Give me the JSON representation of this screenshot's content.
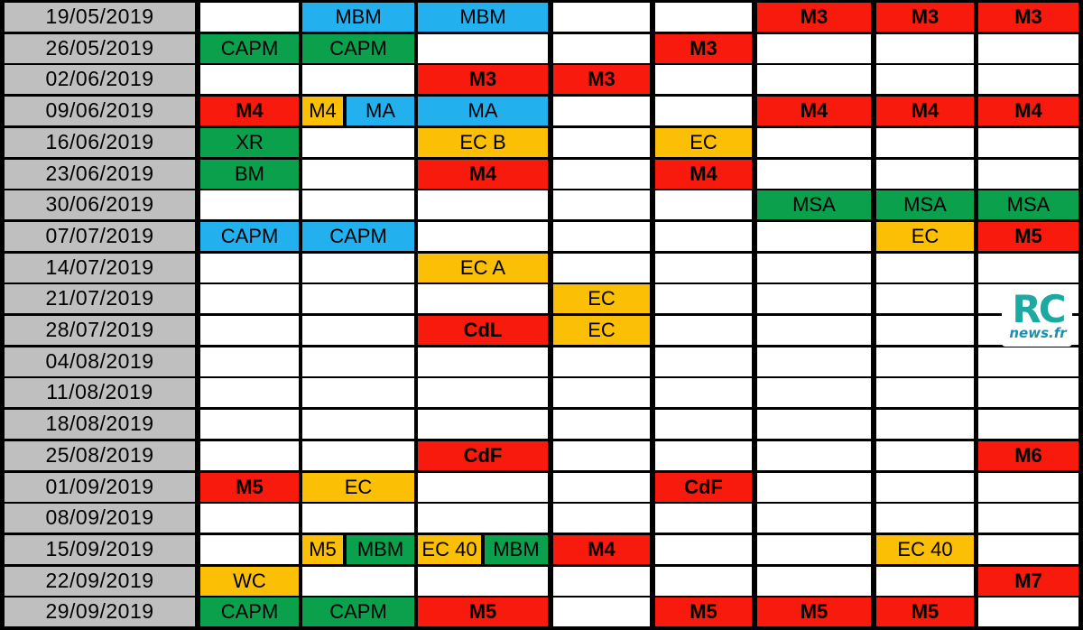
{
  "colors": {
    "red": "#f81a0c",
    "green": "#0aa04c",
    "blue": "#23b0ef",
    "yellow": "#fbbf05",
    "date_bg": "#bfbfbf",
    "empty": "#ffffff"
  },
  "logo": {
    "main": "RC",
    "sub": "news.fr"
  },
  "rows": [
    {
      "date": "19/05/2019",
      "cells": [
        {
          "span": 1
        },
        {
          "span": 1,
          "text": "MBM",
          "color": "blue"
        },
        {
          "span": 1,
          "text": "MBM",
          "color": "blue"
        },
        {
          "span": 1
        },
        {
          "span": 1
        },
        {
          "span": 1,
          "text": "M3",
          "color": "red"
        },
        {
          "span": 1,
          "text": "M3",
          "color": "red"
        },
        {
          "span": 1,
          "text": "M3",
          "color": "red"
        }
      ]
    },
    {
      "date": "26/05/2019",
      "cells": [
        {
          "span": 1,
          "text": "CAPM",
          "color": "green"
        },
        {
          "span": 1,
          "text": "CAPM",
          "color": "green"
        },
        {
          "span": 1
        },
        {
          "span": 1
        },
        {
          "span": 1,
          "text": "M3",
          "color": "red"
        },
        {
          "span": 1
        },
        {
          "span": 1
        },
        {
          "span": 1
        }
      ]
    },
    {
      "date": "02/06/2019",
      "cells": [
        {
          "span": 1
        },
        {
          "span": 1
        },
        {
          "span": 1,
          "text": "M3",
          "color": "red"
        },
        {
          "span": 1,
          "text": "M3",
          "color": "red"
        },
        {
          "span": 1
        },
        {
          "span": 1
        },
        {
          "span": 1
        },
        {
          "span": 1
        }
      ]
    },
    {
      "date": "09/06/2019",
      "cells": [
        {
          "span": 1,
          "text": "M4",
          "color": "red"
        },
        {
          "split": [
            {
              "text": "M4",
              "color": "yellow",
              "w": 0.38
            },
            {
              "text": "MA",
              "color": "blue",
              "w": 0.62
            }
          ]
        },
        {
          "span": 1,
          "text": "MA",
          "color": "blue"
        },
        {
          "span": 1
        },
        {
          "span": 1
        },
        {
          "span": 1,
          "text": "M4",
          "color": "red"
        },
        {
          "span": 1,
          "text": "M4",
          "color": "red"
        },
        {
          "span": 1,
          "text": "M4",
          "color": "red"
        }
      ]
    },
    {
      "date": "16/06/2019",
      "cells": [
        {
          "span": 1,
          "text": "XR",
          "color": "green"
        },
        {
          "span": 1
        },
        {
          "span": 1,
          "text": "EC B",
          "color": "yellow"
        },
        {
          "span": 1
        },
        {
          "span": 1,
          "text": "EC",
          "color": "yellow"
        },
        {
          "span": 1
        },
        {
          "span": 1
        },
        {
          "span": 1
        }
      ]
    },
    {
      "date": "23/06/2019",
      "cells": [
        {
          "span": 1,
          "text": "BM",
          "color": "green"
        },
        {
          "span": 1
        },
        {
          "span": 1,
          "text": "M4",
          "color": "red"
        },
        {
          "span": 1
        },
        {
          "span": 1,
          "text": "M4",
          "color": "red"
        },
        {
          "span": 1
        },
        {
          "span": 1
        },
        {
          "span": 1
        }
      ]
    },
    {
      "date": "30/06/2019",
      "cells": [
        {
          "span": 1
        },
        {
          "span": 1
        },
        {
          "span": 1
        },
        {
          "span": 1
        },
        {
          "span": 1
        },
        {
          "span": 1,
          "text": "MSA",
          "color": "green"
        },
        {
          "span": 1,
          "text": "MSA",
          "color": "green"
        },
        {
          "span": 1,
          "text": "MSA",
          "color": "green"
        }
      ]
    },
    {
      "date": "07/07/2019",
      "cells": [
        {
          "span": 1,
          "text": "CAPM",
          "color": "blue"
        },
        {
          "span": 1,
          "text": "CAPM",
          "color": "blue"
        },
        {
          "span": 1
        },
        {
          "span": 1
        },
        {
          "span": 1
        },
        {
          "span": 1
        },
        {
          "span": 1,
          "text": "EC",
          "color": "yellow"
        },
        {
          "span": 1,
          "text": "M5",
          "color": "red"
        }
      ]
    },
    {
      "date": "14/07/2019",
      "cells": [
        {
          "span": 1
        },
        {
          "span": 1
        },
        {
          "span": 1,
          "text": "EC A",
          "color": "yellow"
        },
        {
          "span": 1
        },
        {
          "span": 1
        },
        {
          "span": 1
        },
        {
          "span": 1
        },
        {
          "span": 1
        }
      ]
    },
    {
      "date": "21/07/2019",
      "cells": [
        {
          "span": 1
        },
        {
          "span": 1
        },
        {
          "span": 1
        },
        {
          "span": 1,
          "text": "EC",
          "color": "yellow"
        },
        {
          "span": 1
        },
        {
          "span": 1
        },
        {
          "span": 1
        },
        {
          "span": 1
        }
      ]
    },
    {
      "date": "28/07/2019",
      "cells": [
        {
          "span": 1
        },
        {
          "span": 1
        },
        {
          "span": 1,
          "text": "CdL",
          "color": "red"
        },
        {
          "span": 1,
          "text": "EC",
          "color": "yellow"
        },
        {
          "span": 1
        },
        {
          "span": 1
        },
        {
          "span": 1
        },
        {
          "span": 1
        }
      ]
    },
    {
      "date": "04/08/2019",
      "cells": [
        {
          "span": 1
        },
        {
          "span": 1
        },
        {
          "span": 1
        },
        {
          "span": 1
        },
        {
          "span": 1
        },
        {
          "span": 1
        },
        {
          "span": 1
        },
        {
          "span": 1
        }
      ]
    },
    {
      "date": "11/08/2019",
      "cells": [
        {
          "span": 1
        },
        {
          "span": 1
        },
        {
          "span": 1
        },
        {
          "span": 1
        },
        {
          "span": 1
        },
        {
          "span": 1
        },
        {
          "span": 1
        },
        {
          "span": 1
        }
      ]
    },
    {
      "date": "18/08/2019",
      "cells": [
        {
          "span": 1
        },
        {
          "span": 1
        },
        {
          "span": 1
        },
        {
          "span": 1
        },
        {
          "span": 1
        },
        {
          "span": 1
        },
        {
          "span": 1
        },
        {
          "span": 1
        }
      ]
    },
    {
      "date": "25/08/2019",
      "cells": [
        {
          "span": 1
        },
        {
          "span": 1
        },
        {
          "span": 1,
          "text": "CdF",
          "color": "red"
        },
        {
          "span": 1
        },
        {
          "span": 1
        },
        {
          "span": 1
        },
        {
          "span": 1
        },
        {
          "span": 1,
          "text": "M6",
          "color": "red"
        }
      ]
    },
    {
      "date": "01/09/2019",
      "cells": [
        {
          "span": 1,
          "text": "M5",
          "color": "red"
        },
        {
          "span": 1,
          "text": "EC",
          "color": "yellow"
        },
        {
          "span": 1
        },
        {
          "span": 1
        },
        {
          "span": 1,
          "text": "CdF",
          "color": "red"
        },
        {
          "span": 1
        },
        {
          "span": 1
        },
        {
          "span": 1
        }
      ]
    },
    {
      "date": "08/09/2019",
      "cells": [
        {
          "span": 1
        },
        {
          "span": 1
        },
        {
          "span": 1
        },
        {
          "span": 1
        },
        {
          "span": 1
        },
        {
          "span": 1
        },
        {
          "span": 1
        },
        {
          "span": 1
        }
      ]
    },
    {
      "date": "15/09/2019",
      "cells": [
        {
          "span": 1
        },
        {
          "split": [
            {
              "text": "M5",
              "color": "yellow",
              "w": 0.38
            },
            {
              "text": "MBM",
              "color": "green",
              "w": 0.62
            }
          ]
        },
        {
          "split": [
            {
              "text": "EC 40",
              "color": "yellow",
              "w": 0.5
            },
            {
              "text": "MBM",
              "color": "green",
              "w": 0.5
            }
          ]
        },
        {
          "span": 1,
          "text": "M4",
          "color": "red"
        },
        {
          "span": 1
        },
        {
          "span": 1
        },
        {
          "span": 1,
          "text": "EC 40",
          "color": "yellow"
        },
        {
          "span": 1
        }
      ]
    },
    {
      "date": "22/09/2019",
      "cells": [
        {
          "span": 1,
          "text": "WC",
          "color": "yellow"
        },
        {
          "span": 1
        },
        {
          "span": 1
        },
        {
          "span": 1
        },
        {
          "span": 1
        },
        {
          "span": 1
        },
        {
          "span": 1
        },
        {
          "span": 1,
          "text": "M7",
          "color": "red"
        }
      ]
    },
    {
      "date": "29/09/2019",
      "cells": [
        {
          "span": 1,
          "text": "CAPM",
          "color": "green"
        },
        {
          "span": 1,
          "text": "CAPM",
          "color": "green"
        },
        {
          "span": 1,
          "text": "M5",
          "color": "red"
        },
        {
          "span": 1
        },
        {
          "span": 1,
          "text": "M5",
          "color": "red"
        },
        {
          "span": 1,
          "text": "M5",
          "color": "red"
        },
        {
          "span": 1,
          "text": "M5",
          "color": "red"
        },
        {
          "span": 1
        }
      ]
    }
  ]
}
